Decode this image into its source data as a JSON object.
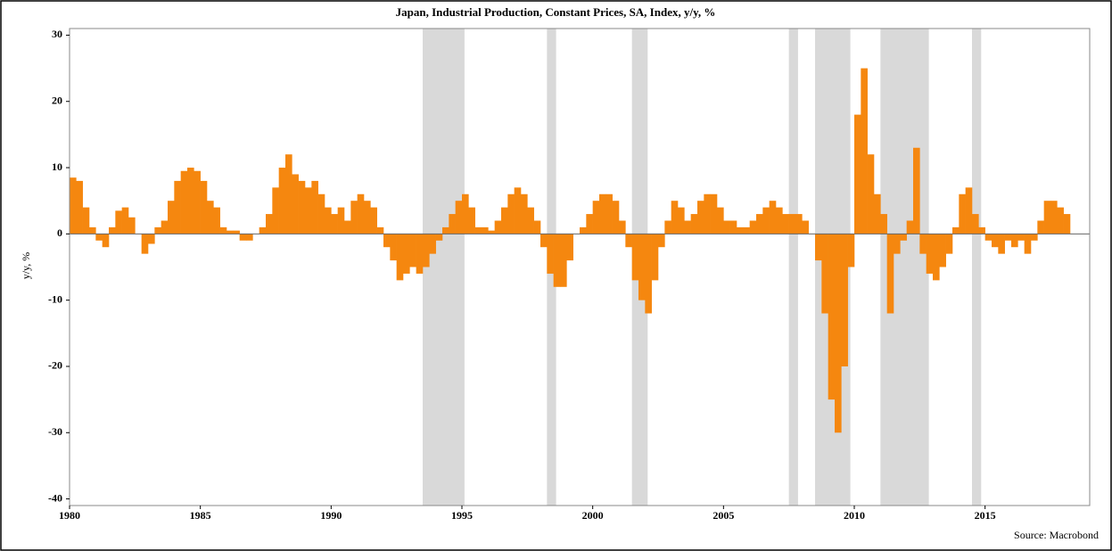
{
  "chart_data": {
    "type": "bar",
    "title": "Japan, Industrial Production, Constant Prices, SA, Index, y/y, %",
    "y_label": "y/y, %",
    "source": "Source: Macrobond",
    "color": "#f5870f",
    "shade_color": "#d9d9d9",
    "shaded_periods": [
      [
        1993.5,
        1995.1
      ],
      [
        1998.25,
        1998.6
      ],
      [
        2001.5,
        2002.1
      ],
      [
        2007.5,
        2007.85
      ],
      [
        2008.5,
        2009.85
      ],
      [
        2011.0,
        2012.85
      ],
      [
        2014.5,
        2014.85
      ]
    ],
    "xlim": [
      1980,
      2019
    ],
    "xticks": [
      1980,
      1985,
      1990,
      1995,
      2000,
      2005,
      2010,
      2015
    ],
    "ylim": [
      -41,
      31
    ],
    "yticks": [
      -40,
      -30,
      -20,
      -10,
      0,
      10,
      20,
      30
    ],
    "x": [
      1980,
      1980.25,
      1980.5,
      1980.75,
      1981,
      1981.25,
      1981.5,
      1981.75,
      1982,
      1982.25,
      1982.5,
      1982.75,
      1983,
      1983.25,
      1983.5,
      1983.75,
      1984,
      1984.25,
      1984.5,
      1984.75,
      1985,
      1985.25,
      1985.5,
      1985.75,
      1986,
      1986.25,
      1986.5,
      1986.75,
      1987,
      1987.25,
      1987.5,
      1987.75,
      1988,
      1988.25,
      1988.5,
      1988.75,
      1989,
      1989.25,
      1989.5,
      1989.75,
      1990,
      1990.25,
      1990.5,
      1990.75,
      1991,
      1991.25,
      1991.5,
      1991.75,
      1992,
      1992.25,
      1992.5,
      1992.75,
      1993,
      1993.25,
      1993.5,
      1993.75,
      1994,
      1994.25,
      1994.5,
      1994.75,
      1995,
      1995.25,
      1995.5,
      1995.75,
      1996,
      1996.25,
      1996.5,
      1996.75,
      1997,
      1997.25,
      1997.5,
      1997.75,
      1998,
      1998.25,
      1998.5,
      1998.75,
      1999,
      1999.25,
      1999.5,
      1999.75,
      2000,
      2000.25,
      2000.5,
      2000.75,
      2001,
      2001.25,
      2001.5,
      2001.75,
      2002,
      2002.25,
      2002.5,
      2002.75,
      2003,
      2003.25,
      2003.5,
      2003.75,
      2004,
      2004.25,
      2004.5,
      2004.75,
      2005,
      2005.25,
      2005.5,
      2005.75,
      2006,
      2006.25,
      2006.5,
      2006.75,
      2007,
      2007.25,
      2007.5,
      2007.75,
      2008,
      2008.25,
      2008.5,
      2008.75,
      2009,
      2009.25,
      2009.5,
      2009.75,
      2010,
      2010.25,
      2010.5,
      2010.75,
      2011,
      2011.25,
      2011.5,
      2011.75,
      2012,
      2012.25,
      2012.5,
      2012.75,
      2013,
      2013.25,
      2013.5,
      2013.75,
      2014,
      2014.25,
      2014.5,
      2014.75,
      2015,
      2015.25,
      2015.5,
      2015.75,
      2016,
      2016.25,
      2016.5,
      2016.75,
      2017,
      2017.25,
      2017.5,
      2017.75,
      2018
    ],
    "values": [
      8.5,
      8,
      4,
      1,
      -1,
      -2,
      1,
      3.5,
      4,
      2.5,
      0,
      -3,
      -1.5,
      1,
      2,
      5,
      8,
      9.5,
      10,
      9.5,
      8,
      5,
      4,
      1,
      0.5,
      0.5,
      -1,
      -1,
      0,
      1,
      3,
      7,
      10,
      12,
      9,
      8,
      7,
      8,
      6,
      4,
      3,
      4,
      2,
      5,
      6,
      5,
      4,
      1,
      -2,
      -4,
      -7,
      -6,
      -5,
      -6,
      -5,
      -3,
      -1,
      1,
      3,
      5,
      6,
      4,
      1,
      1,
      0.5,
      2,
      4,
      6,
      7,
      6,
      4,
      2,
      -2,
      -6,
      -8,
      -8,
      -4,
      0,
      1,
      3,
      5,
      6,
      6,
      5,
      2,
      -2,
      -7,
      -10,
      -12,
      -7,
      -2,
      2,
      5,
      4,
      2,
      3,
      5,
      6,
      6,
      4,
      2,
      2,
      1,
      1,
      2,
      3,
      4,
      5,
      4,
      3,
      3,
      3,
      2,
      0,
      -4,
      -12,
      -25,
      -30,
      -20,
      -5,
      18,
      25,
      12,
      6,
      3,
      -12,
      -3,
      -1,
      2,
      13,
      -3,
      -6,
      -7,
      -5,
      -3,
      1,
      6,
      7,
      3,
      1,
      -1,
      -2,
      -3,
      -1,
      -2,
      -1,
      -3,
      -1,
      2,
      5,
      5,
      4,
      3
    ]
  }
}
